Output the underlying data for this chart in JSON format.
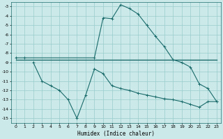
{
  "xlabel": "Humidex (Indice chaleur)",
  "bg_color": "#cce9e9",
  "grid_color": "#99cccc",
  "line_color": "#1a6b6b",
  "xlim": [
    -0.5,
    23.5
  ],
  "ylim": [
    -15.5,
    -2.5
  ],
  "xticks": [
    0,
    1,
    2,
    3,
    4,
    5,
    6,
    7,
    8,
    9,
    10,
    11,
    12,
    13,
    14,
    15,
    16,
    17,
    18,
    19,
    20,
    21,
    22,
    23
  ],
  "yticks": [
    -15,
    -14,
    -13,
    -12,
    -11,
    -10,
    -9,
    -8,
    -7,
    -6,
    -5,
    -4,
    -3
  ],
  "line1_x": [
    0,
    1,
    9,
    10,
    11,
    12,
    13,
    14,
    15,
    16,
    17,
    18,
    19,
    20,
    21,
    22,
    23
  ],
  "line1_y": [
    -8.5,
    -8.5,
    -8.5,
    -4.2,
    -4.3,
    -2.8,
    -3.2,
    -3.8,
    -5.0,
    -6.2,
    -7.3,
    -8.7,
    -9.0,
    -9.5,
    -11.3,
    -11.8,
    -13.2
  ],
  "line2_x": [
    0,
    1,
    2,
    3,
    4,
    5,
    6,
    7,
    8,
    9,
    10,
    11,
    12,
    13,
    14,
    15,
    16,
    17,
    18,
    19,
    20,
    21,
    22,
    23
  ],
  "line2_y": [
    -8.7,
    -8.7,
    -8.7,
    -8.7,
    -8.7,
    -8.7,
    -8.7,
    -8.7,
    -8.7,
    -8.7,
    -8.7,
    -8.7,
    -8.7,
    -8.7,
    -8.7,
    -8.7,
    -8.7,
    -8.7,
    -8.7,
    -8.7,
    -8.7,
    -8.7,
    -8.7,
    -8.7
  ],
  "line3_x": [
    2,
    3,
    4,
    5,
    6,
    7,
    8,
    9,
    10,
    11,
    12,
    13,
    14,
    15,
    16,
    17,
    18,
    19,
    20,
    21,
    22,
    23
  ],
  "line3_y": [
    -9.0,
    -11.0,
    -11.5,
    -12.0,
    -13.0,
    -15.0,
    -12.5,
    -9.7,
    -10.2,
    -11.5,
    -11.8,
    -12.0,
    -12.3,
    -12.5,
    -12.7,
    -12.9,
    -13.0,
    -13.2,
    -13.5,
    -13.8,
    -13.2,
    -13.2
  ]
}
